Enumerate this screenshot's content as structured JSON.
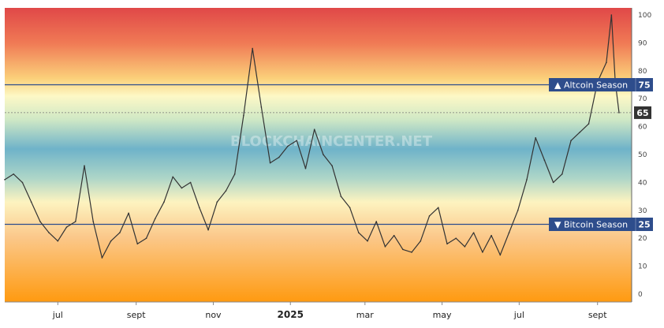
{
  "chart_data": {
    "type": "line",
    "title": "",
    "watermark": "BLOCKCHAINCENTER.NET",
    "ylim": [
      0,
      100
    ],
    "y_ticks": [
      0,
      10,
      20,
      30,
      40,
      50,
      60,
      70,
      80,
      90,
      100
    ],
    "x_ticks": [
      {
        "label": "jul",
        "x": "2024-07-01",
        "bold": false
      },
      {
        "label": "sept",
        "x": "2024-09-01",
        "bold": false
      },
      {
        "label": "nov",
        "x": "2024-11-01",
        "bold": false
      },
      {
        "label": "2025",
        "x": "2025-01-01",
        "bold": true
      },
      {
        "label": "mar",
        "x": "2025-03-01",
        "bold": false
      },
      {
        "label": "may",
        "x": "2025-05-01",
        "bold": false
      },
      {
        "label": "jul",
        "x": "2025-07-01",
        "bold": false
      },
      {
        "label": "sept",
        "x": "2025-09-01",
        "bold": false
      }
    ],
    "xlim": [
      "2024-05-20",
      "2025-09-28"
    ],
    "background": "gradient red (top) to orange (bottom) through yellow and blue",
    "reference_lines": [
      {
        "name": "Altcoin Season",
        "value": 75,
        "symbol": "▲",
        "color": "#2e4d8c"
      },
      {
        "name": "Bitcoin Season",
        "value": 25,
        "symbol": "▼",
        "color": "#2e4d8c"
      }
    ],
    "current": {
      "value": 65,
      "color": "#333333"
    },
    "series": [
      {
        "name": "",
        "color": "#333333",
        "points": [
          [
            "2024-05-20",
            41
          ],
          [
            "2024-05-27",
            43
          ],
          [
            "2024-06-03",
            40
          ],
          [
            "2024-06-10",
            33
          ],
          [
            "2024-06-17",
            26
          ],
          [
            "2024-06-24",
            22
          ],
          [
            "2024-07-01",
            19
          ],
          [
            "2024-07-08",
            24
          ],
          [
            "2024-07-15",
            26
          ],
          [
            "2024-07-22",
            46
          ],
          [
            "2024-07-29",
            26
          ],
          [
            "2024-08-05",
            13
          ],
          [
            "2024-08-12",
            19
          ],
          [
            "2024-08-19",
            22
          ],
          [
            "2024-08-26",
            29
          ],
          [
            "2024-09-02",
            18
          ],
          [
            "2024-09-09",
            20
          ],
          [
            "2024-09-16",
            27
          ],
          [
            "2024-09-23",
            33
          ],
          [
            "2024-09-30",
            42
          ],
          [
            "2024-10-07",
            38
          ],
          [
            "2024-10-14",
            40
          ],
          [
            "2024-10-21",
            31
          ],
          [
            "2024-10-28",
            23
          ],
          [
            "2024-11-04",
            33
          ],
          [
            "2024-11-11",
            37
          ],
          [
            "2024-11-18",
            43
          ],
          [
            "2024-11-25",
            64
          ],
          [
            "2024-12-02",
            88
          ],
          [
            "2024-12-09",
            67
          ],
          [
            "2024-12-16",
            47
          ],
          [
            "2024-12-23",
            49
          ],
          [
            "2024-12-30",
            53
          ],
          [
            "2025-01-06",
            55
          ],
          [
            "2025-01-13",
            45
          ],
          [
            "2025-01-20",
            59
          ],
          [
            "2025-01-27",
            50
          ],
          [
            "2025-02-03",
            46
          ],
          [
            "2025-02-10",
            35
          ],
          [
            "2025-02-17",
            31
          ],
          [
            "2025-02-24",
            22
          ],
          [
            "2025-03-03",
            19
          ],
          [
            "2025-03-10",
            26
          ],
          [
            "2025-03-17",
            17
          ],
          [
            "2025-03-24",
            21
          ],
          [
            "2025-03-31",
            16
          ],
          [
            "2025-04-07",
            15
          ],
          [
            "2025-04-14",
            19
          ],
          [
            "2025-04-21",
            28
          ],
          [
            "2025-04-28",
            31
          ],
          [
            "2025-05-05",
            18
          ],
          [
            "2025-05-12",
            20
          ],
          [
            "2025-05-19",
            17
          ],
          [
            "2025-05-26",
            22
          ],
          [
            "2025-06-02",
            15
          ],
          [
            "2025-06-09",
            21
          ],
          [
            "2025-06-16",
            14
          ],
          [
            "2025-06-23",
            22
          ],
          [
            "2025-06-30",
            30
          ],
          [
            "2025-07-07",
            41
          ],
          [
            "2025-07-14",
            56
          ],
          [
            "2025-07-21",
            48
          ],
          [
            "2025-07-28",
            40
          ],
          [
            "2025-08-04",
            43
          ],
          [
            "2025-08-11",
            55
          ],
          [
            "2025-08-18",
            58
          ],
          [
            "2025-08-25",
            61
          ],
          [
            "2025-09-01",
            76
          ],
          [
            "2025-09-08",
            83
          ],
          [
            "2025-09-12",
            100
          ],
          [
            "2025-09-15",
            76
          ],
          [
            "2025-09-18",
            65
          ]
        ]
      }
    ]
  }
}
